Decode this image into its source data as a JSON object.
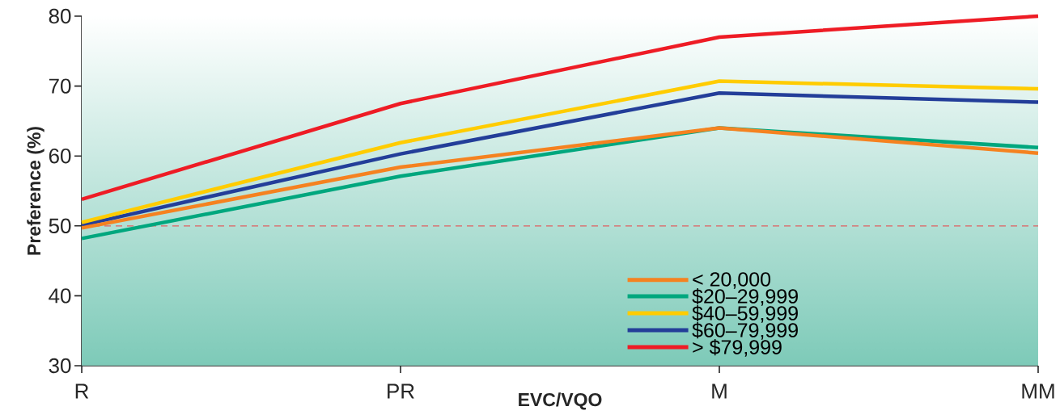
{
  "chart_data": {
    "type": "line",
    "xlabel": "EVC/VQO",
    "ylabel": "Preference (%)",
    "categories": [
      "R",
      "PR",
      "M",
      "MM"
    ],
    "ylim": [
      30,
      80
    ],
    "yticks": [
      30,
      40,
      50,
      60,
      70,
      80
    ],
    "series": [
      {
        "name": "< 20,000",
        "color": "#f58220",
        "values": [
          49.7,
          58.4,
          64.0,
          60.4
        ]
      },
      {
        "name": "$20–29,999",
        "color": "#00a77e",
        "values": [
          48.2,
          57.1,
          64.0,
          61.2
        ]
      },
      {
        "name": "$40–59,999",
        "color": "#ffcc00",
        "values": [
          50.5,
          61.9,
          70.7,
          69.6
        ]
      },
      {
        "name": "$60–79,999",
        "color": "#233e99",
        "values": [
          50.1,
          60.3,
          69.0,
          67.7
        ]
      },
      {
        "name": "> $79,999",
        "color": "#ee1c25",
        "values": [
          53.8,
          67.5,
          77.0,
          80.0
        ]
      }
    ],
    "ref_lines": [
      {
        "axis": "y",
        "value": 50,
        "color": "#e06060",
        "line_style": "dashed"
      }
    ],
    "legend": "bottom",
    "grid": false,
    "marker": "none",
    "line_style": "solid"
  }
}
